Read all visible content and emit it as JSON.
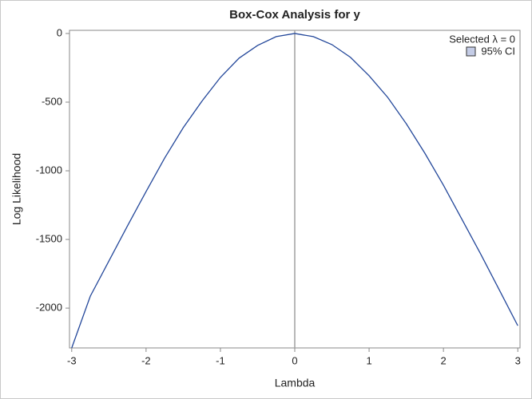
{
  "chart_data": {
    "type": "line",
    "title": "Box-Cox Analysis for y",
    "x_label": "Lambda",
    "y_label": "Log Likelihood",
    "x": [
      -3,
      -2.75,
      -2.5,
      -2.25,
      -2,
      -1.75,
      -1.5,
      -1.25,
      -1,
      -0.75,
      -0.5,
      -0.25,
      0,
      0.25,
      0.5,
      0.75,
      1,
      1.25,
      1.5,
      1.75,
      2,
      2.25,
      2.5,
      2.75,
      3
    ],
    "series": [
      {
        "name": "Log Likelihood",
        "color": "#23479a",
        "values": [
          -2290,
          -1913,
          -1657,
          -1401,
          -1151,
          -907,
          -686,
          -494,
          -320,
          -180,
          -87,
          -23,
          0,
          -23,
          -81,
          -174,
          -308,
          -465,
          -657,
          -872,
          -1105,
          -1355,
          -1605,
          -1866,
          -2128
        ]
      }
    ],
    "selected_lambda": 0,
    "selected_label": "Selected λ = 0",
    "reference_color": "#a0a0a0",
    "ci_label": "95% CI",
    "ci_color": "#c4cce6",
    "xlim": [
      -3.03,
      3.03
    ],
    "ylim": [
      -2290,
      23
    ],
    "xticks": [
      -3,
      -2,
      -1,
      0,
      1,
      2,
      3
    ],
    "yticks": [
      0,
      -500,
      -1000,
      -1500,
      -2000
    ]
  }
}
